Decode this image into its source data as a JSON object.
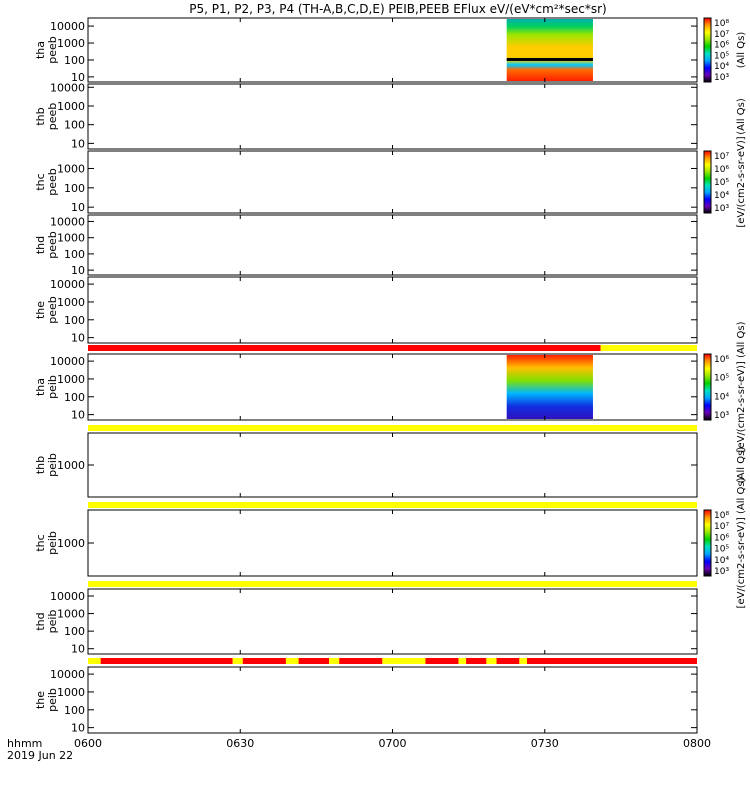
{
  "title": "P5, P1, P2, P3, P4 (TH-A,B,C,D,E) PEIB,PEEB EFlux eV/(eV*cm²*sec*sr)",
  "time_axis": {
    "label": "hhmm",
    "date": "2019 Jun 22",
    "start_min": 360,
    "end_min": 480,
    "ticks": [
      {
        "min": 360,
        "label": "0600"
      },
      {
        "min": 390,
        "label": "0630"
      },
      {
        "min": 420,
        "label": "0700"
      },
      {
        "min": 450,
        "label": "0730"
      },
      {
        "min": 480,
        "label": "0800"
      }
    ]
  },
  "colorbar_palette": [
    "#000000",
    "#6a00b8",
    "#0000ff",
    "#00a5ff",
    "#00e0c0",
    "#00d000",
    "#9ae600",
    "#ffff00",
    "#ff9900",
    "#ff0000"
  ],
  "chart_data": [
    {
      "type": "heatmap",
      "probe": "tha",
      "product": "peeb",
      "ylabel": [
        "tha",
        "peeb"
      ],
      "ylog": true,
      "ylim": [
        5,
        30000
      ],
      "yticks": [
        {
          "v": 10,
          "l": "10"
        },
        {
          "v": 100,
          "l": "100"
        },
        {
          "v": 1000,
          "l": "1000"
        },
        {
          "v": 10000,
          "l": "10000"
        }
      ],
      "data_interval_min": [
        442.5,
        459.5
      ],
      "colorbar": {
        "label": "(All Qs)",
        "ticks": [
          "10³",
          "10⁴",
          "10⁵",
          "10⁶",
          "10⁷",
          "10⁸"
        ]
      }
    },
    {
      "type": "heatmap",
      "probe": "thb",
      "product": "peeb",
      "ylabel": [
        "thb",
        "peeb"
      ],
      "ylog": true,
      "ylim": [
        5,
        15000
      ],
      "yticks": [
        {
          "v": 10,
          "l": "10"
        },
        {
          "v": 100,
          "l": "100"
        },
        {
          "v": 1000,
          "l": "1000"
        },
        {
          "v": 10000,
          "l": "10000"
        }
      ],
      "data_interval_min": null,
      "colorbar": {
        "label": "(All Qs)",
        "ticks": []
      }
    },
    {
      "type": "heatmap",
      "probe": "thc",
      "product": "peeb",
      "ylabel": [
        "thc",
        "peeb"
      ],
      "ylog": true,
      "ylim": [
        5,
        8000
      ],
      "yticks": [
        {
          "v": 10,
          "l": "10"
        },
        {
          "v": 100,
          "l": "100"
        },
        {
          "v": 1000,
          "l": "1000"
        }
      ],
      "data_interval_min": null,
      "colorbar": {
        "label": "[eV/(cm2-s-sr-eV)]",
        "ticks": [
          "10³",
          "10⁴",
          "10⁵",
          "10⁶",
          "10⁷"
        ]
      }
    },
    {
      "type": "heatmap",
      "probe": "thd",
      "product": "peeb",
      "ylabel": [
        "thd",
        "peeb"
      ],
      "ylog": true,
      "ylim": [
        5,
        25000
      ],
      "yticks": [
        {
          "v": 10,
          "l": "10"
        },
        {
          "v": 100,
          "l": "100"
        },
        {
          "v": 1000,
          "l": "1000"
        },
        {
          "v": 10000,
          "l": "10000"
        }
      ],
      "data_interval_min": null,
      "colorbar": null
    },
    {
      "type": "heatmap",
      "probe": "the",
      "product": "peeb",
      "ylabel": [
        "the",
        "peeb"
      ],
      "ylog": true,
      "ylim": [
        5,
        25000
      ],
      "yticks": [
        {
          "v": 10,
          "l": "10"
        },
        {
          "v": 100,
          "l": "100"
        },
        {
          "v": 1000,
          "l": "1000"
        },
        {
          "v": 10000,
          "l": "10000"
        }
      ],
      "data_interval_min": null,
      "colorbar": null,
      "status_bar": [
        {
          "start": 360,
          "end": 461,
          "color": "red"
        },
        {
          "start": 461,
          "end": 480,
          "color": "yellow"
        }
      ]
    },
    {
      "type": "heatmap",
      "probe": "tha",
      "product": "peib",
      "ylabel": [
        "tha",
        "peib"
      ],
      "ylog": true,
      "ylim": [
        5,
        25000
      ],
      "yticks": [
        {
          "v": 10,
          "l": "10"
        },
        {
          "v": 100,
          "l": "100"
        },
        {
          "v": 1000,
          "l": "1000"
        },
        {
          "v": 10000,
          "l": "10000"
        }
      ],
      "data_interval_min": [
        442.5,
        459.5
      ],
      "colorbar": {
        "label": "[eV/(cm2-s-sr-eV)] (All Qs)",
        "ticks": [
          "10³",
          "10⁴",
          "10⁵",
          "10⁶"
        ]
      },
      "status_bar": [
        {
          "start": 360,
          "end": 480,
          "color": "yellow"
        }
      ]
    },
    {
      "type": "heatmap",
      "probe": "thb",
      "product": "peib",
      "ylabel": [
        "thb",
        "peib"
      ],
      "ylog": true,
      "ylim": [
        100,
        10000
      ],
      "yticks": [
        {
          "v": 1000,
          "l": "1000"
        }
      ],
      "data_interval_min": null,
      "colorbar": {
        "label": "(All Qs)",
        "ticks": []
      },
      "status_bar": [
        {
          "start": 360,
          "end": 480,
          "color": "yellow"
        }
      ]
    },
    {
      "type": "heatmap",
      "probe": "thc",
      "product": "peib",
      "ylabel": [
        "thc",
        "peib"
      ],
      "ylog": true,
      "ylim": [
        100,
        10000
      ],
      "yticks": [
        {
          "v": 1000,
          "l": "1000"
        }
      ],
      "data_interval_min": null,
      "colorbar": {
        "label": "[eV/(cm2-s-sr-eV)] (All Qs)",
        "ticks": [
          "10³",
          "10⁴",
          "10⁵",
          "10⁶",
          "10⁷",
          "10⁸"
        ]
      },
      "status_bar": [
        {
          "start": 360,
          "end": 480,
          "color": "yellow"
        }
      ]
    },
    {
      "type": "heatmap",
      "probe": "thd",
      "product": "peib",
      "ylabel": [
        "thd",
        "peib"
      ],
      "ylog": true,
      "ylim": [
        5,
        25000
      ],
      "yticks": [
        {
          "v": 10,
          "l": "10"
        },
        {
          "v": 100,
          "l": "100"
        },
        {
          "v": 1000,
          "l": "1000"
        },
        {
          "v": 10000,
          "l": "10000"
        }
      ],
      "data_interval_min": null,
      "colorbar": null,
      "status_bar": [
        {
          "start": 360,
          "end": 362.5,
          "color": "yellow"
        },
        {
          "start": 362.5,
          "end": 388.5,
          "color": "red"
        },
        {
          "start": 388.5,
          "end": 390.5,
          "color": "yellow"
        },
        {
          "start": 390.5,
          "end": 399,
          "color": "red"
        },
        {
          "start": 399,
          "end": 401.5,
          "color": "yellow"
        },
        {
          "start": 401.5,
          "end": 407.5,
          "color": "red"
        },
        {
          "start": 407.5,
          "end": 409.5,
          "color": "yellow"
        },
        {
          "start": 409.5,
          "end": 418,
          "color": "red"
        },
        {
          "start": 418,
          "end": 426.5,
          "color": "yellow"
        },
        {
          "start": 426.5,
          "end": 433,
          "color": "red"
        },
        {
          "start": 433,
          "end": 434.5,
          "color": "yellow"
        },
        {
          "start": 434.5,
          "end": 438.5,
          "color": "red"
        },
        {
          "start": 438.5,
          "end": 440.5,
          "color": "yellow"
        },
        {
          "start": 440.5,
          "end": 445,
          "color": "red"
        },
        {
          "start": 445,
          "end": 446.5,
          "color": "yellow"
        },
        {
          "start": 446.5,
          "end": 480,
          "color": "red"
        }
      ]
    },
    {
      "type": "heatmap",
      "probe": "the",
      "product": "peib",
      "ylabel": [
        "the",
        "peib"
      ],
      "ylog": true,
      "ylim": [
        5,
        25000
      ],
      "yticks": [
        {
          "v": 10,
          "l": "10"
        },
        {
          "v": 100,
          "l": "100"
        },
        {
          "v": 1000,
          "l": "1000"
        },
        {
          "v": 10000,
          "l": "10000"
        }
      ],
      "data_interval_min": null,
      "colorbar": null
    }
  ]
}
